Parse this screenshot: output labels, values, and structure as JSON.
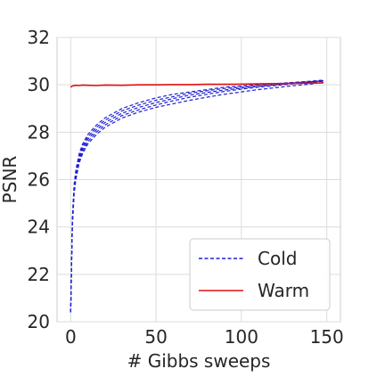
{
  "chart_data": {
    "type": "line",
    "title": "",
    "xlabel": "# Gibbs sweeps",
    "ylabel": "PSNR",
    "xlim": [
      -8,
      158
    ],
    "ylim": [
      20,
      32
    ],
    "xticks": [
      0,
      50,
      100,
      150
    ],
    "yticks": [
      20,
      22,
      24,
      26,
      28,
      30,
      32
    ],
    "grid": true,
    "legend_position": "bottom-right",
    "legend": [
      {
        "label": "Cold",
        "color": "#1f1fd6",
        "style": "dashed"
      },
      {
        "label": "Warm",
        "color": "#e01010",
        "style": "solid"
      }
    ],
    "x": [
      0,
      1,
      2,
      3,
      5,
      7,
      10,
      15,
      20,
      30,
      40,
      50,
      60,
      70,
      80,
      90,
      100,
      110,
      120,
      130,
      140,
      148
    ],
    "series": [
      {
        "name": "Cold",
        "group": "cold",
        "color": "#1f1fd6",
        "values": [
          20.4,
          24.4,
          25.8,
          26.4,
          27.1,
          27.5,
          27.9,
          28.3,
          28.6,
          29.0,
          29.25,
          29.45,
          29.6,
          29.7,
          29.8,
          29.9,
          29.95,
          30.0,
          30.05,
          30.1,
          30.15,
          30.2
        ]
      },
      {
        "name": "Cold",
        "group": "cold",
        "color": "#1f1fd6",
        "values": [
          20.4,
          24.3,
          25.7,
          26.3,
          27.0,
          27.4,
          27.8,
          28.2,
          28.5,
          28.9,
          29.15,
          29.35,
          29.5,
          29.65,
          29.75,
          29.85,
          29.9,
          29.97,
          30.03,
          30.08,
          30.13,
          30.17
        ]
      },
      {
        "name": "Cold",
        "group": "cold",
        "color": "#1f1fd6",
        "values": [
          20.4,
          24.2,
          25.6,
          26.2,
          26.9,
          27.3,
          27.7,
          28.1,
          28.4,
          28.8,
          29.05,
          29.25,
          29.42,
          29.57,
          29.68,
          29.78,
          29.86,
          29.93,
          30.0,
          30.06,
          30.12,
          30.17
        ]
      },
      {
        "name": "Cold",
        "group": "cold",
        "color": "#1f1fd6",
        "values": [
          20.4,
          24.1,
          25.5,
          26.1,
          26.8,
          27.2,
          27.6,
          28.0,
          28.3,
          28.7,
          28.95,
          29.15,
          29.33,
          29.48,
          29.6,
          29.72,
          29.82,
          29.9,
          29.97,
          30.04,
          30.1,
          30.15
        ]
      },
      {
        "name": "Cold",
        "group": "cold",
        "color": "#1f1fd6",
        "values": [
          20.4,
          24.0,
          25.4,
          26.0,
          26.7,
          27.1,
          27.5,
          27.9,
          28.2,
          28.6,
          28.85,
          29.05,
          29.2,
          29.35,
          29.48,
          29.6,
          29.7,
          29.8,
          29.88,
          29.96,
          30.03,
          30.1
        ]
      },
      {
        "name": "Warm",
        "group": "warm",
        "color": "#e01010",
        "values": [
          29.9,
          29.95,
          29.97,
          29.98,
          29.97,
          29.99,
          29.98,
          29.97,
          29.99,
          29.98,
          30.0,
          30.0,
          30.01,
          30.01,
          30.02,
          30.02,
          30.03,
          30.04,
          30.05,
          30.06,
          30.07,
          30.08
        ]
      }
    ]
  }
}
